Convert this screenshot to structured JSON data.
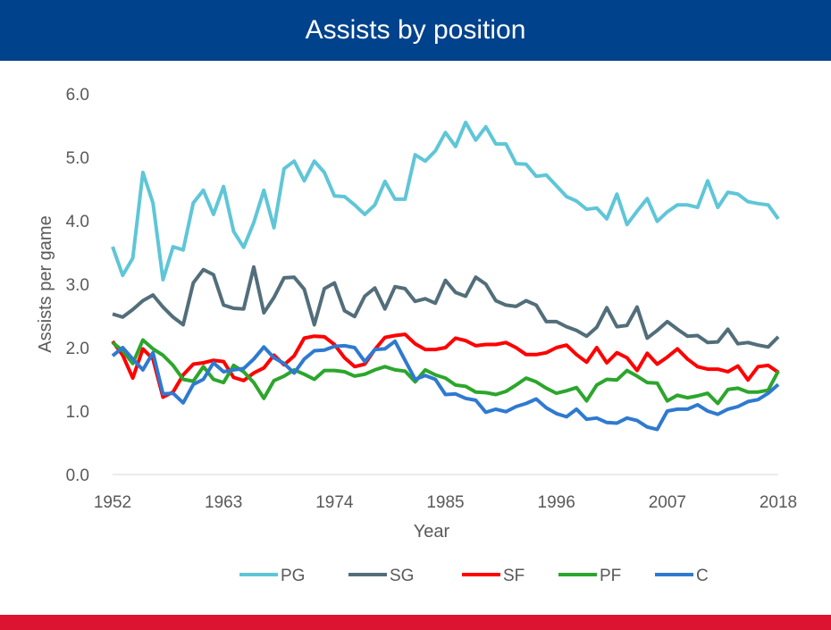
{
  "chart_data": {
    "type": "line",
    "title": "Assists by position",
    "xlabel": "Year",
    "ylabel": "Assists per game",
    "xlim": [
      1952,
      2018
    ],
    "ylim": [
      0,
      6
    ],
    "x_ticks": [
      "1952",
      "1963",
      "1974",
      "1985",
      "1996",
      "2007",
      "2018"
    ],
    "y_ticks": [
      "0.0",
      "1.0",
      "2.0",
      "3.0",
      "4.0",
      "5.0",
      "6.0"
    ],
    "grid": false,
    "legend_position": "bottom",
    "x_start": 1952,
    "series": [
      {
        "name": "PG",
        "color": "#5fc6d7",
        "values": [
          3.59,
          3.14,
          3.41,
          4.76,
          4.28,
          3.07,
          3.59,
          3.54,
          4.28,
          4.48,
          4.1,
          4.54,
          3.83,
          3.58,
          3.97,
          4.48,
          3.89,
          4.82,
          4.94,
          4.63,
          4.94,
          4.76,
          4.39,
          4.38,
          4.25,
          4.1,
          4.25,
          4.62,
          4.34,
          4.34,
          5.04,
          4.94,
          5.1,
          5.39,
          5.17,
          5.55,
          5.27,
          5.48,
          5.21,
          5.21,
          4.9,
          4.89,
          4.7,
          4.72,
          4.55,
          4.38,
          4.31,
          4.18,
          4.2,
          4.03,
          4.42,
          3.94,
          4.15,
          4.35,
          3.99,
          4.14,
          4.25,
          4.25,
          4.21,
          4.63,
          4.21,
          4.45,
          4.42,
          4.3,
          4.27,
          4.25,
          4.03
        ]
      },
      {
        "name": "SG",
        "color": "#526e7a",
        "values": [
          2.53,
          2.48,
          2.6,
          2.74,
          2.83,
          2.64,
          2.48,
          2.36,
          3.02,
          3.23,
          3.15,
          2.67,
          2.62,
          2.61,
          3.27,
          2.55,
          2.79,
          3.1,
          3.11,
          2.92,
          2.36,
          2.93,
          3.02,
          2.58,
          2.49,
          2.81,
          2.94,
          2.61,
          2.96,
          2.93,
          2.73,
          2.77,
          2.7,
          3.06,
          2.87,
          2.81,
          3.11,
          3.0,
          2.74,
          2.67,
          2.65,
          2.74,
          2.67,
          2.41,
          2.41,
          2.33,
          2.27,
          2.18,
          2.32,
          2.63,
          2.33,
          2.35,
          2.64,
          2.15,
          2.27,
          2.41,
          2.29,
          2.18,
          2.19,
          2.08,
          2.09,
          2.29,
          2.06,
          2.08,
          2.04,
          2.01,
          2.17
        ]
      },
      {
        "name": "SF",
        "color": "#ff0000",
        "values": [
          2.1,
          1.88,
          1.52,
          1.98,
          1.82,
          1.22,
          1.3,
          1.57,
          1.74,
          1.76,
          1.8,
          1.78,
          1.53,
          1.48,
          1.6,
          1.68,
          1.88,
          1.73,
          1.87,
          2.15,
          2.18,
          2.17,
          2.05,
          1.84,
          1.7,
          1.74,
          1.97,
          2.16,
          2.19,
          2.21,
          2.06,
          1.97,
          1.97,
          2.0,
          2.15,
          2.11,
          2.03,
          2.05,
          2.05,
          2.08,
          2.0,
          1.89,
          1.89,
          1.92,
          2.0,
          2.04,
          1.89,
          1.77,
          2.0,
          1.76,
          1.92,
          1.84,
          1.64,
          1.91,
          1.74,
          1.85,
          1.98,
          1.82,
          1.7,
          1.66,
          1.66,
          1.62,
          1.71,
          1.49,
          1.7,
          1.72,
          1.61
        ]
      },
      {
        "name": "PF",
        "color": "#2ca62c",
        "values": [
          2.08,
          1.95,
          1.75,
          2.12,
          1.98,
          1.88,
          1.72,
          1.5,
          1.47,
          1.7,
          1.5,
          1.45,
          1.72,
          1.62,
          1.45,
          1.2,
          1.48,
          1.55,
          1.65,
          1.58,
          1.5,
          1.64,
          1.64,
          1.62,
          1.55,
          1.58,
          1.65,
          1.7,
          1.65,
          1.63,
          1.46,
          1.65,
          1.57,
          1.52,
          1.41,
          1.39,
          1.3,
          1.29,
          1.26,
          1.31,
          1.41,
          1.52,
          1.46,
          1.36,
          1.28,
          1.32,
          1.37,
          1.16,
          1.41,
          1.5,
          1.49,
          1.64,
          1.55,
          1.45,
          1.44,
          1.16,
          1.25,
          1.21,
          1.24,
          1.28,
          1.12,
          1.34,
          1.36,
          1.3,
          1.3,
          1.33,
          1.63
        ]
      },
      {
        "name": "C",
        "color": "#2f7ad0",
        "values": [
          1.87,
          2.0,
          1.82,
          1.65,
          1.92,
          1.27,
          1.28,
          1.13,
          1.42,
          1.5,
          1.76,
          1.62,
          1.65,
          1.67,
          1.82,
          2.01,
          1.84,
          1.75,
          1.6,
          1.82,
          1.95,
          1.96,
          2.02,
          2.03,
          2.0,
          1.78,
          1.97,
          1.98,
          2.1,
          1.8,
          1.5,
          1.56,
          1.5,
          1.26,
          1.27,
          1.2,
          1.17,
          0.98,
          1.03,
          0.99,
          1.07,
          1.12,
          1.19,
          1.05,
          0.96,
          0.91,
          1.03,
          0.87,
          0.89,
          0.82,
          0.81,
          0.89,
          0.85,
          0.75,
          0.71,
          1.0,
          1.03,
          1.03,
          1.1,
          1.0,
          0.95,
          1.03,
          1.07,
          1.15,
          1.18,
          1.28,
          1.42
        ]
      }
    ]
  },
  "colors": {
    "title_bar": "#00428c",
    "footer_bar": "#dc1431"
  }
}
